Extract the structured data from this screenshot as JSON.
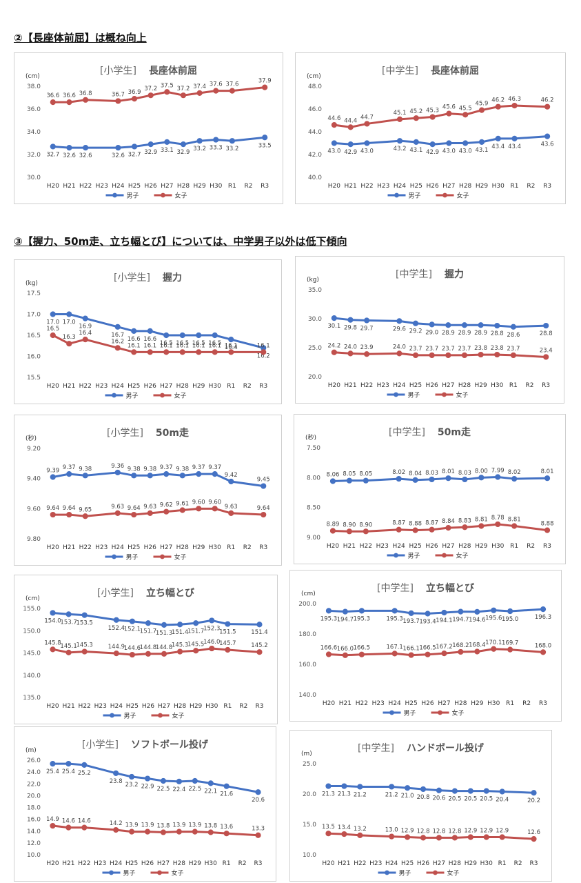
{
  "headings": [
    "②【長座体前屈】は概ね向上",
    "③【握力、50m走、立ち幅とび】については、中学男子以外は低下傾向"
  ],
  "legend": {
    "male": "男子",
    "female": "女子",
    "male_color": "#4472C4",
    "female_color": "#C0504D"
  },
  "categories": [
    "H20",
    "H21",
    "H22",
    "H23",
    "H24",
    "H25",
    "H26",
    "H27",
    "H28",
    "H29",
    "H30",
    "R1",
    "R2",
    "R3"
  ],
  "chart_data": [
    {
      "id": "elem-sitreach",
      "type": "line",
      "title_level": "[小学生]",
      "title_event": "長座体前屈",
      "unit": "(cm)",
      "ylim": [
        30,
        38
      ],
      "yticks": [
        "38.0",
        "36.0",
        "34.0",
        "32.0",
        "30.0"
      ],
      "reversed": false,
      "series": [
        {
          "name": "男子",
          "values": [
            32.7,
            32.6,
            32.6,
            null,
            32.6,
            32.7,
            32.9,
            33.1,
            32.9,
            33.2,
            33.3,
            33.2,
            null,
            33.5
          ],
          "labels": [
            "32.7",
            "32.6",
            "32.6",
            "",
            "32.6",
            "32.7",
            "32.9",
            "33.1",
            "32.9",
            "33.2",
            "33.3",
            "33.2",
            "",
            "33.5"
          ]
        },
        {
          "name": "女子",
          "values": [
            36.6,
            36.6,
            36.8,
            null,
            36.7,
            36.9,
            37.2,
            37.5,
            37.2,
            37.4,
            37.6,
            37.6,
            null,
            37.9
          ],
          "labels": [
            "36.6",
            "36.6",
            "36.8",
            "",
            "36.7",
            "36.9",
            "37.2",
            "37.5",
            "37.2",
            "37.4",
            "37.6",
            "37.6",
            "",
            "37.9"
          ]
        }
      ]
    },
    {
      "id": "jh-sitreach",
      "type": "line",
      "title_level": "[中学生]",
      "title_event": "長座体前屈",
      "unit": "(cm)",
      "ylim": [
        40,
        48
      ],
      "yticks": [
        "48.0",
        "46.0",
        "44.0",
        "42.0",
        "40.0"
      ],
      "reversed": false,
      "series": [
        {
          "name": "男子",
          "values": [
            43.0,
            42.9,
            43.0,
            null,
            43.2,
            43.1,
            42.9,
            43.0,
            43.0,
            43.1,
            43.4,
            43.4,
            null,
            43.6
          ],
          "labels": [
            "43.0",
            "42.9",
            "43.0",
            "",
            "43.2",
            "43.1",
            "42.9",
            "43.0",
            "43.0",
            "43.1",
            "43.4",
            "43.4",
            "",
            "43.6"
          ]
        },
        {
          "name": "女子",
          "values": [
            44.6,
            44.4,
            44.7,
            null,
            45.1,
            45.2,
            45.3,
            45.6,
            45.5,
            45.9,
            46.2,
            46.3,
            null,
            46.2
          ],
          "labels": [
            "44.6",
            "44.4",
            "44.7",
            "",
            "45.1",
            "45.2",
            "45.3",
            "45.6",
            "45.5",
            "45.9",
            "46.2",
            "46.3",
            "",
            "46.2"
          ]
        }
      ]
    },
    {
      "id": "elem-grip",
      "type": "line",
      "title_level": "[小学生]",
      "title_event": "握力",
      "unit": "(kg)",
      "ylim": [
        15.5,
        17.5
      ],
      "yticks": [
        "17.5",
        "17.0",
        "16.5",
        "16.0",
        "15.5"
      ],
      "reversed": false,
      "series": [
        {
          "name": "男子",
          "values": [
            17.0,
            17.0,
            16.9,
            null,
            16.7,
            16.6,
            16.6,
            16.5,
            16.5,
            16.5,
            16.5,
            16.4,
            null,
            16.2
          ],
          "labels": [
            "17.0",
            "17.0",
            "16.9",
            "",
            "16.7",
            "16.6",
            "16.6",
            "16.5",
            "16.5",
            "16.5",
            "16.5",
            "16.4",
            "",
            "16.2"
          ]
        },
        {
          "name": "女子",
          "values": [
            16.5,
            16.3,
            16.4,
            null,
            16.2,
            16.1,
            16.1,
            16.1,
            16.1,
            16.1,
            16.1,
            16.1,
            null,
            16.1
          ],
          "labels": [
            "16.5",
            "16.3",
            "16.4",
            "",
            "16.2",
            "16.1",
            "16.1",
            "16.1",
            "16.1",
            "16.1",
            "16.1",
            "16.1",
            "",
            "16.1"
          ]
        }
      ]
    },
    {
      "id": "jh-grip",
      "type": "line",
      "title_level": "[中学生]",
      "title_event": "握力",
      "unit": "(kg)",
      "ylim": [
        20,
        35
      ],
      "yticks": [
        "35.0",
        "30.0",
        "25.0",
        "20.0"
      ],
      "reversed": false,
      "series": [
        {
          "name": "男子",
          "values": [
            30.1,
            29.8,
            29.7,
            null,
            29.6,
            29.2,
            29.0,
            28.9,
            28.9,
            28.9,
            28.8,
            28.6,
            null,
            28.8
          ],
          "labels": [
            "30.1",
            "29.8",
            "29.7",
            "",
            "29.6",
            "29.2",
            "29.0",
            "28.9",
            "28.9",
            "28.9",
            "28.8",
            "28.6",
            "",
            "28.8"
          ]
        },
        {
          "name": "女子",
          "values": [
            24.2,
            24.0,
            23.9,
            null,
            24.0,
            23.7,
            23.7,
            23.7,
            23.7,
            23.8,
            23.8,
            23.7,
            null,
            23.4
          ],
          "labels": [
            "24.2",
            "24.0",
            "23.9",
            "",
            "24.0",
            "23.7",
            "23.7",
            "23.7",
            "23.7",
            "23.8",
            "23.8",
            "23.7",
            "",
            "23.4"
          ]
        }
      ]
    },
    {
      "id": "elem-50m",
      "type": "line",
      "title_level": "[小学生]",
      "title_event": "50m走",
      "unit": "(秒)",
      "ylim": [
        9.2,
        9.8
      ],
      "yticks": [
        "9.20",
        "9.40",
        "9.60",
        "9.80"
      ],
      "reversed": true,
      "series": [
        {
          "name": "男子",
          "values": [
            9.39,
            9.37,
            9.38,
            null,
            9.36,
            9.38,
            9.38,
            9.37,
            9.38,
            9.37,
            9.37,
            9.42,
            null,
            9.45
          ],
          "labels": [
            "9.39",
            "9.37",
            "9.38",
            "",
            "9.36",
            "9.38",
            "9.38",
            "9.37",
            "9.38",
            "9.37",
            "9.37",
            "9.42",
            "",
            "9.45"
          ]
        },
        {
          "name": "女子",
          "values": [
            9.64,
            9.64,
            9.65,
            null,
            9.63,
            9.64,
            9.63,
            9.62,
            9.61,
            9.6,
            9.6,
            9.63,
            null,
            9.64
          ],
          "labels": [
            "9.64",
            "9.64",
            "9.65",
            "",
            "9.63",
            "9.64",
            "9.63",
            "9.62",
            "9.61",
            "9.60",
            "9.60",
            "9.63",
            "",
            "9.64"
          ]
        }
      ]
    },
    {
      "id": "jh-50m",
      "type": "line",
      "title_level": "[中学生]",
      "title_event": "50m走",
      "unit": "(秒)",
      "ylim": [
        7.5,
        9.0
      ],
      "yticks": [
        "7.50",
        "8.00",
        "8.50",
        "9.00"
      ],
      "reversed": true,
      "series": [
        {
          "name": "男子",
          "values": [
            8.06,
            8.05,
            8.05,
            null,
            8.02,
            8.04,
            8.03,
            8.01,
            8.03,
            8.0,
            7.99,
            8.02,
            null,
            8.01
          ],
          "labels": [
            "8.06",
            "8.05",
            "8.05",
            "",
            "8.02",
            "8.04",
            "8.03",
            "8.01",
            "8.03",
            "8.00",
            "7.99",
            "8.02",
            "",
            "8.01"
          ]
        },
        {
          "name": "女子",
          "values": [
            8.89,
            8.9,
            8.9,
            null,
            8.87,
            8.88,
            8.87,
            8.84,
            8.83,
            8.81,
            8.78,
            8.81,
            null,
            8.88
          ],
          "labels": [
            "8.89",
            "8.90",
            "8.90",
            "",
            "8.87",
            "8.88",
            "8.87",
            "8.84",
            "8.83",
            "8.81",
            "8.78",
            "8.81",
            "",
            "8.88"
          ]
        }
      ]
    },
    {
      "id": "elem-jump",
      "type": "line",
      "title_level": "[小学生]",
      "title_event": "立ち幅とび",
      "unit": "(cm)",
      "ylim": [
        135,
        155
      ],
      "yticks": [
        "155.0",
        "150.0",
        "145.0",
        "140.0",
        "135.0"
      ],
      "reversed": false,
      "series": [
        {
          "name": "男子",
          "values": [
            154.0,
            153.7,
            153.5,
            null,
            152.4,
            152.1,
            151.7,
            151.3,
            151.4,
            151.7,
            152.3,
            151.5,
            null,
            151.4
          ],
          "labels": [
            "154.0",
            "153.7",
            "153.5",
            "",
            "152.4",
            "152.1",
            "151.7",
            "151.3",
            "151.4",
            "151.7",
            "152.3",
            "151.5",
            "",
            "151.4"
          ]
        },
        {
          "name": "女子",
          "values": [
            145.8,
            145.1,
            145.3,
            null,
            144.9,
            144.6,
            144.8,
            144.8,
            145.3,
            145.5,
            146.0,
            145.7,
            null,
            145.2
          ],
          "labels": [
            "145.8",
            "145.1",
            "145.3",
            "",
            "144.9",
            "144.6",
            "144.8",
            "144.8",
            "145.3",
            "145.5",
            "146.0",
            "145.7",
            "",
            "145.2"
          ]
        }
      ]
    },
    {
      "id": "jh-jump",
      "type": "line",
      "title_level": "[中学生]",
      "title_event": "立ち幅とび",
      "unit": "(cm)",
      "ylim": [
        140,
        200
      ],
      "yticks": [
        "200.0",
        "180.0",
        "160.0",
        "140.0"
      ],
      "reversed": false,
      "series": [
        {
          "name": "男子",
          "values": [
            195.3,
            194.7,
            195.3,
            null,
            195.3,
            193.7,
            193.4,
            194.1,
            194.7,
            194.6,
            195.6,
            195.0,
            null,
            196.3
          ],
          "labels": [
            "195.3",
            "194.7",
            "195.3",
            "",
            "195.3",
            "193.7",
            "193.4",
            "194.1",
            "194.7",
            "194.6",
            "195.6",
            "195.0",
            "",
            "196.3"
          ]
        },
        {
          "name": "女子",
          "values": [
            166.6,
            166.0,
            166.5,
            null,
            167.1,
            166.1,
            166.5,
            167.2,
            168.2,
            168.4,
            170.1,
            169.7,
            null,
            168.0
          ],
          "labels": [
            "166.6",
            "166.0",
            "166.5",
            "",
            "167.1",
            "166.1",
            "166.5",
            "167.2",
            "168.2",
            "168.4",
            "170.1",
            "169.7",
            "",
            "168.0"
          ]
        }
      ]
    },
    {
      "id": "elem-ball",
      "type": "line",
      "title_level": "[小学生]",
      "title_event": "ソフトボール投げ",
      "unit": "(m)",
      "ylim": [
        10,
        26
      ],
      "yticks": [
        "26.0",
        "24.0",
        "22.0",
        "20.0",
        "18.0",
        "16.0",
        "14.0",
        "12.0",
        "10.0"
      ],
      "reversed": false,
      "series": [
        {
          "name": "男子",
          "values": [
            25.4,
            25.4,
            25.2,
            null,
            23.8,
            23.2,
            22.9,
            22.5,
            22.4,
            22.5,
            22.1,
            21.6,
            null,
            20.6
          ],
          "labels": [
            "25.4",
            "25.4",
            "25.2",
            "",
            "23.8",
            "23.2",
            "22.9",
            "22.5",
            "22.4",
            "22.5",
            "22.1",
            "21.6",
            "",
            "20.6"
          ]
        },
        {
          "name": "女子",
          "values": [
            14.9,
            14.6,
            14.6,
            null,
            14.2,
            13.9,
            13.9,
            13.8,
            13.9,
            13.9,
            13.8,
            13.6,
            null,
            13.3
          ],
          "labels": [
            "14.9",
            "14.6",
            "14.6",
            "",
            "14.2",
            "13.9",
            "13.9",
            "13.8",
            "13.9",
            "13.9",
            "13.8",
            "13.6",
            "",
            "13.3"
          ]
        }
      ]
    },
    {
      "id": "jh-ball",
      "type": "line",
      "title_level": "[中学生]",
      "title_event": "ハンドボール投げ",
      "unit": "(m)",
      "ylim": [
        10,
        25
      ],
      "yticks": [
        "25.0",
        "20.0",
        "15.0",
        "10.0"
      ],
      "reversed": false,
      "series": [
        {
          "name": "男子",
          "values": [
            21.3,
            21.3,
            21.2,
            null,
            21.2,
            21.0,
            20.8,
            20.6,
            20.5,
            20.5,
            20.5,
            20.4,
            null,
            20.2
          ],
          "labels": [
            "21.3",
            "21.3",
            "21.2",
            "",
            "21.2",
            "21.0",
            "20.8",
            "20.6",
            "20.5",
            "20.5",
            "20.5",
            "20.4",
            "",
            "20.2"
          ]
        },
        {
          "name": "女子",
          "values": [
            13.5,
            13.4,
            13.2,
            null,
            13.0,
            12.9,
            12.8,
            12.8,
            12.8,
            12.9,
            12.9,
            12.9,
            null,
            12.6
          ],
          "labels": [
            "13.5",
            "13.4",
            "13.2",
            "",
            "13.0",
            "12.9",
            "12.8",
            "12.8",
            "12.8",
            "12.9",
            "12.9",
            "12.9",
            "",
            "12.6"
          ]
        }
      ]
    }
  ]
}
